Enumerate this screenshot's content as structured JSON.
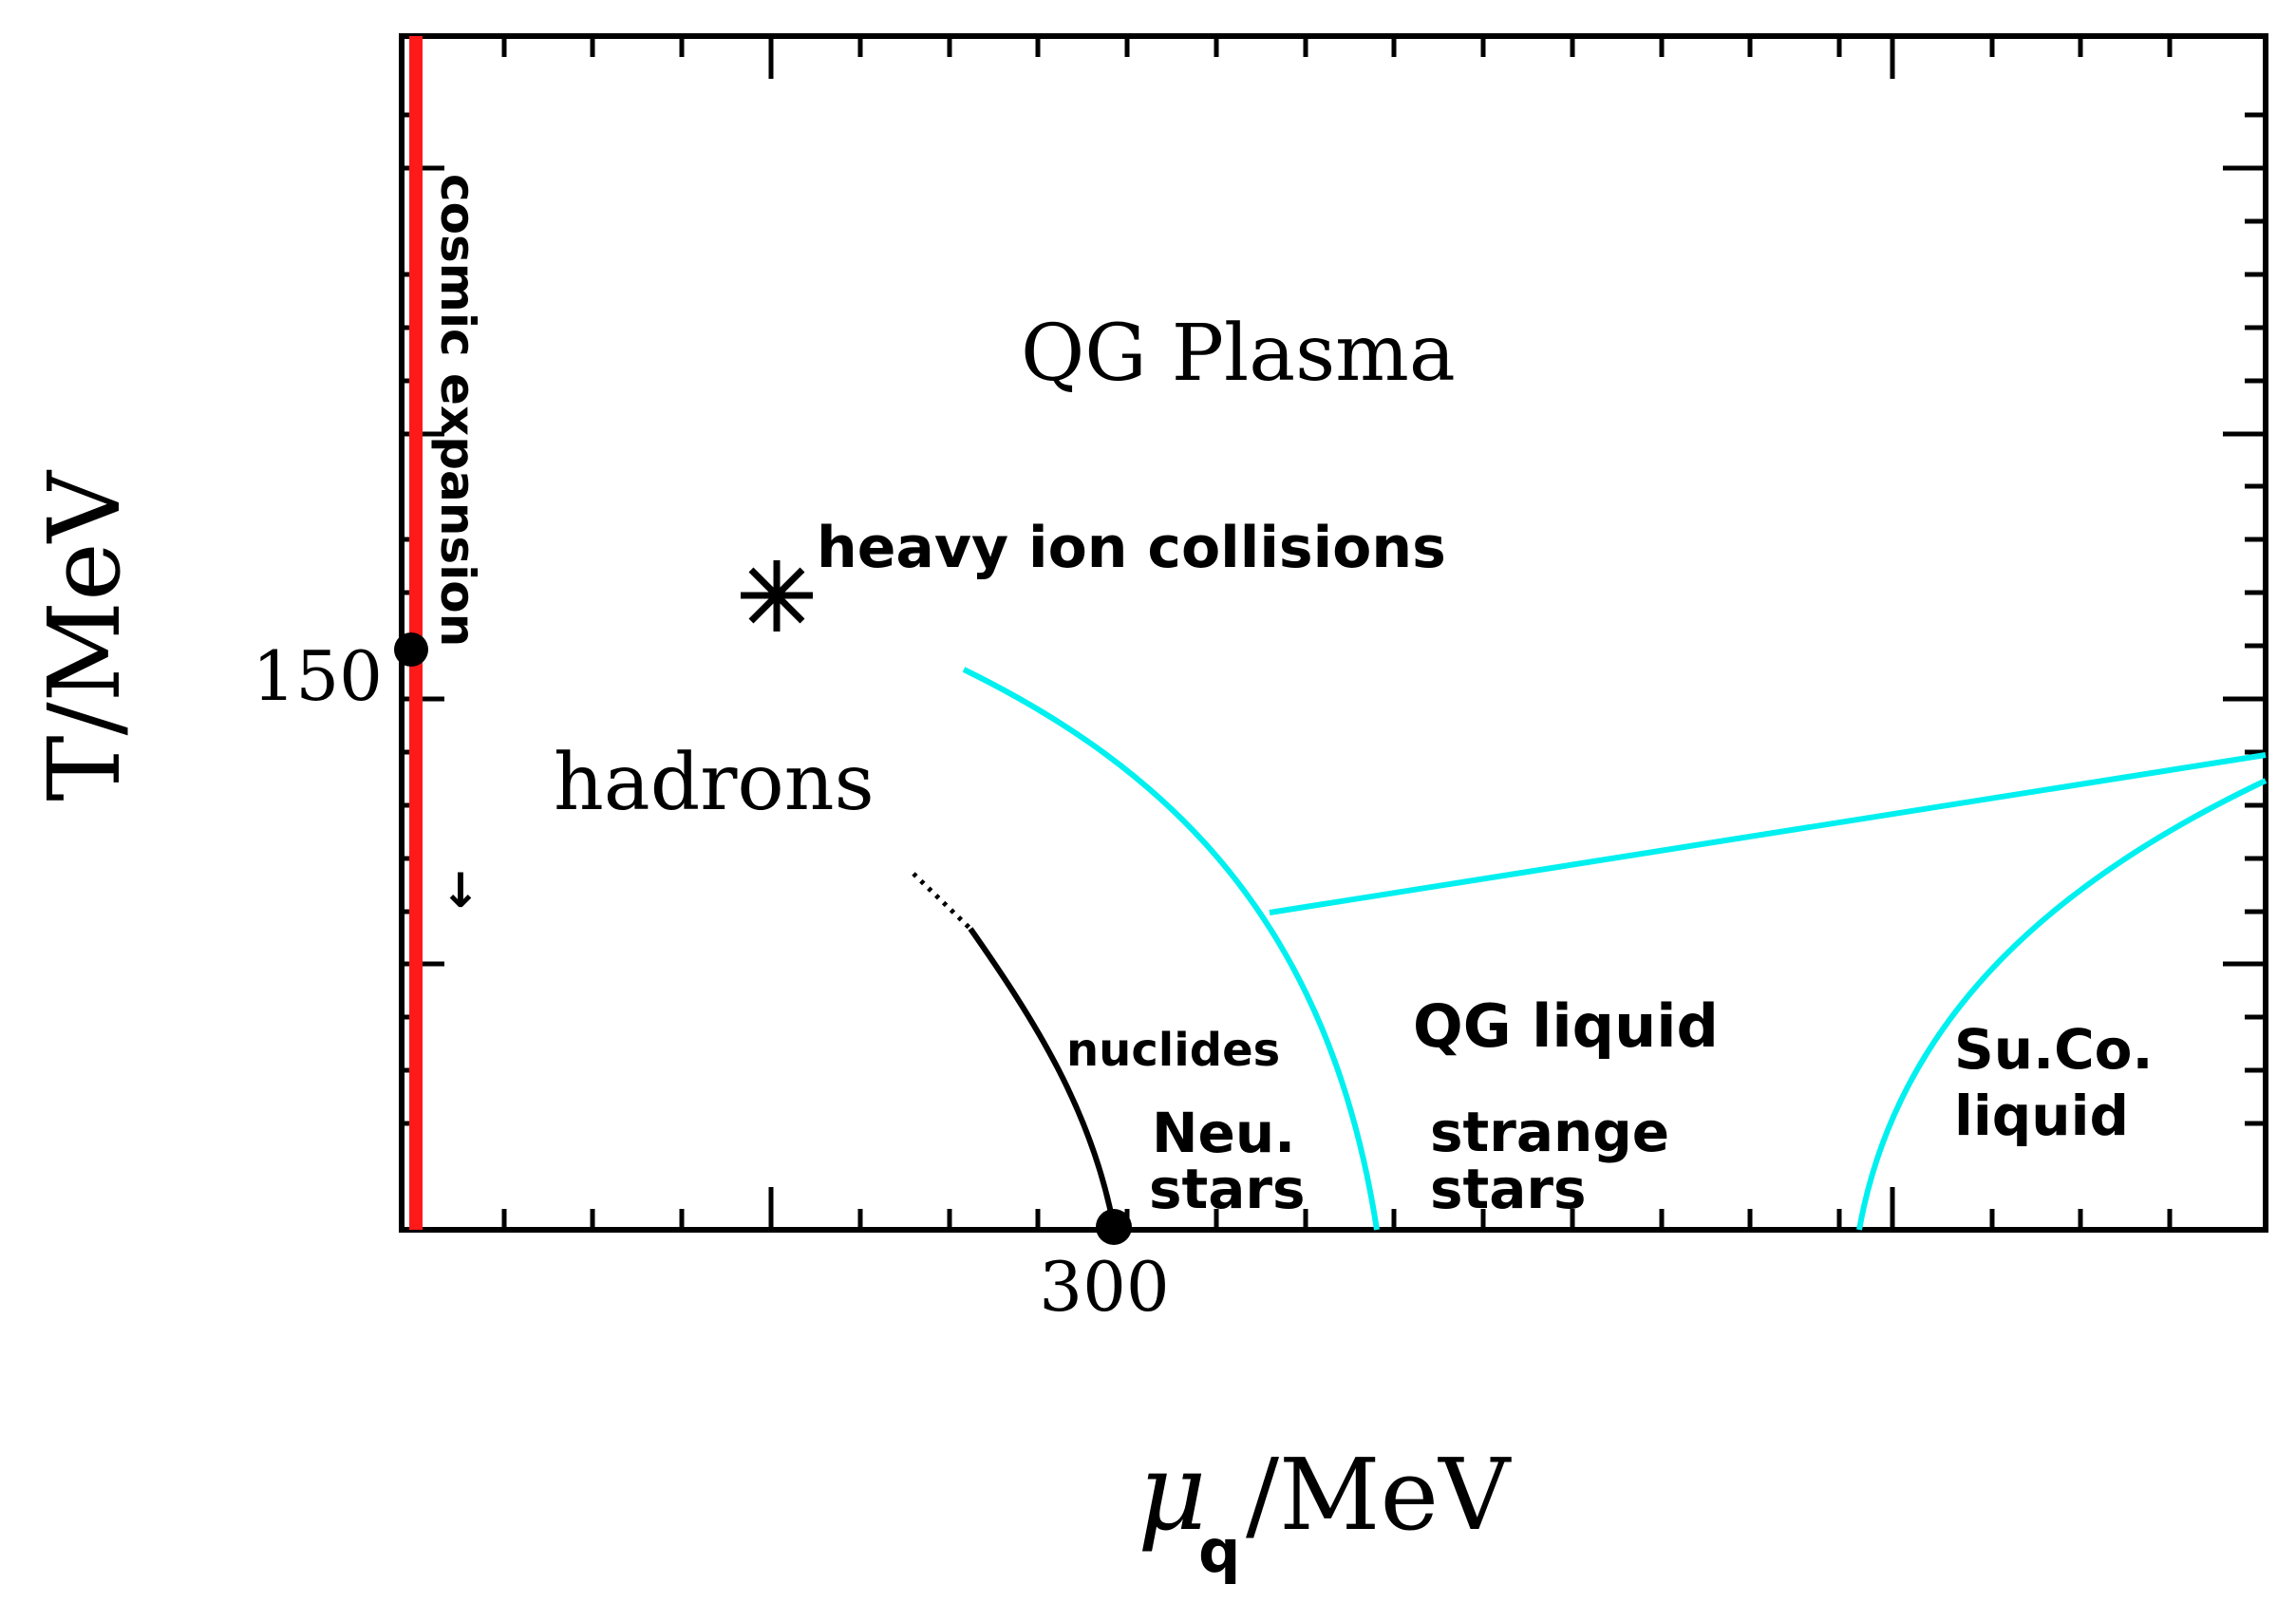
{
  "axes": {
    "xlabel_main": "μ",
    "xlabel_sub": "q",
    "xlabel_rest": "/MeV",
    "ylabel": "T/MeV",
    "x_tick_label": "300",
    "y_tick_label": "150"
  },
  "regions": {
    "qg_plasma": "QG Plasma",
    "heavy_ion": "heavy ion collisions",
    "hadrons": "hadrons",
    "nuclides": "nuclides",
    "neu_stars_1": "Neu.",
    "neu_stars_2": "stars",
    "qg_liquid": "QG liquid",
    "strange_1": "strange",
    "strange_2": "stars",
    "suco_1": "Su.Co.",
    "suco_2": "liquid",
    "cosmic": "cosmic expansion",
    "arrow": "↓"
  },
  "colors": {
    "frame": "#000000",
    "cosmic_line": "#ff1a1a",
    "phase_boundary": "#00f0f0",
    "nuclear_line": "#000000"
  },
  "markers": {
    "heavy_ion_symbol": "asterisk-icon",
    "critical_point_t": "filled-dot-icon",
    "nuclear_matter_point": "filled-dot-icon"
  }
}
